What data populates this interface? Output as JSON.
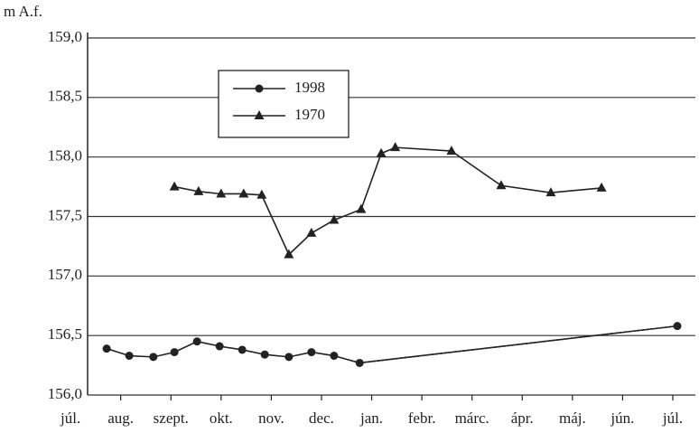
{
  "chart_data": {
    "type": "line",
    "y_label": "m A.f.",
    "xlim": [
      0.34,
      12.45
    ],
    "ylim": [
      156.0,
      159.0
    ],
    "xticks": [
      {
        "value": 0,
        "label": "júl."
      },
      {
        "value": 1,
        "label": "aug."
      },
      {
        "value": 2,
        "label": "szept."
      },
      {
        "value": 3,
        "label": "okt."
      },
      {
        "value": 4,
        "label": "nov."
      },
      {
        "value": 5,
        "label": "dec."
      },
      {
        "value": 6,
        "label": "jan."
      },
      {
        "value": 7,
        "label": "febr."
      },
      {
        "value": 8,
        "label": "márc."
      },
      {
        "value": 9,
        "label": "ápr."
      },
      {
        "value": 10,
        "label": "máj."
      },
      {
        "value": 11,
        "label": "jún."
      },
      {
        "value": 12,
        "label": "júl."
      }
    ],
    "yticks": [
      {
        "value": 156.0,
        "label": "156,0"
      },
      {
        "value": 156.5,
        "label": "156,5"
      },
      {
        "value": 157.0,
        "label": "157,0"
      },
      {
        "value": 157.5,
        "label": "157,5"
      },
      {
        "value": 158.0,
        "label": "158,0"
      },
      {
        "value": 158.5,
        "label": "158,5"
      },
      {
        "value": 159.0,
        "label": "159,0"
      }
    ],
    "grid": true,
    "legend": "upper left",
    "series": [
      {
        "name": "1998",
        "color": "#222",
        "marker": "circle",
        "dotted_segments": [
          11
        ],
        "x": [
          0.72,
          1.17,
          1.65,
          2.07,
          2.52,
          2.97,
          3.42,
          3.87,
          4.35,
          4.8,
          5.25,
          5.76,
          12.09
        ],
        "values": [
          156.39,
          156.33,
          156.32,
          156.36,
          156.45,
          156.41,
          156.38,
          156.34,
          156.32,
          156.36,
          156.33,
          156.27,
          156.58
        ]
      },
      {
        "name": "1970",
        "color": "#222",
        "marker": "triangle",
        "x": [
          2.07,
          2.55,
          3.0,
          3.45,
          3.81,
          4.35,
          4.8,
          5.25,
          5.79,
          6.19,
          6.47,
          7.59,
          8.58,
          9.57,
          10.58
        ],
        "values": [
          157.75,
          157.71,
          157.69,
          157.69,
          157.68,
          157.18,
          157.36,
          157.47,
          157.56,
          158.03,
          158.08,
          158.05,
          157.76,
          157.7,
          157.74
        ]
      }
    ]
  }
}
